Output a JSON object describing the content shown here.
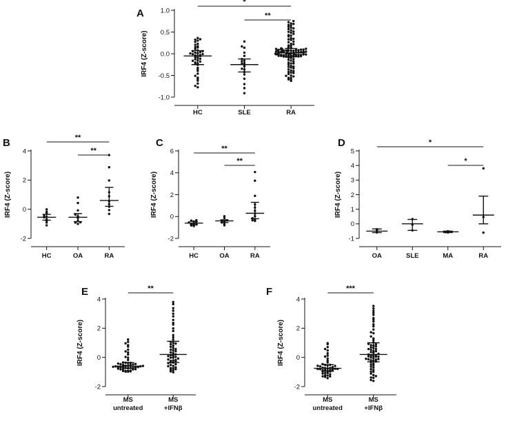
{
  "chart_data": [
    {
      "id": "A",
      "type": "scatter",
      "label": "A",
      "ylabel": "IRF4 (Z-score)",
      "ylim": [
        -1.0,
        1.0
      ],
      "yticks": [
        -1.0,
        -0.5,
        0.0,
        0.5,
        1.0
      ],
      "ytick_labels": [
        "-1.0",
        "-0.5",
        "0.0",
        "0.5",
        "1.0"
      ],
      "groups": [
        {
          "name": "HC",
          "n": 46,
          "min": -0.78,
          "max": 0.37,
          "median": -0.05,
          "q1": -0.25,
          "q3": 0.07
        },
        {
          "name": "SLE",
          "n": 20,
          "min": -0.9,
          "max": 0.28,
          "median": -0.25,
          "q1": -0.42,
          "q3": -0.12
        },
        {
          "name": "RA",
          "n": 120,
          "min": -0.62,
          "max": 0.75,
          "median": 0.02,
          "q1": -0.07,
          "q3": 0.12
        }
      ],
      "significance": [
        {
          "from": "HC",
          "to": "RA",
          "label": "*"
        },
        {
          "from": "SLE",
          "to": "RA",
          "label": "**"
        }
      ]
    },
    {
      "id": "B",
      "type": "scatter",
      "label": "B",
      "ylabel": "IRF4 (Z-score)",
      "ylim": [
        -2,
        4
      ],
      "yticks": [
        -2,
        0,
        2,
        4
      ],
      "ytick_labels": [
        "-2",
        "0",
        "2",
        "4"
      ],
      "groups": [
        {
          "name": "HC",
          "n": 10,
          "min": -1.1,
          "max": 0.0,
          "median": -0.55,
          "q1": -0.75,
          "q3": -0.35
        },
        {
          "name": "OA",
          "n": 10,
          "min": -1.0,
          "max": 0.8,
          "median": -0.55,
          "q1": -0.85,
          "q3": -0.3
        },
        {
          "name": "RA",
          "n": 10,
          "min": -0.3,
          "max": 3.7,
          "median": 0.6,
          "q1": 0.2,
          "q3": 1.5
        }
      ],
      "significance": [
        {
          "from": "HC",
          "to": "RA",
          "label": "**"
        },
        {
          "from": "OA",
          "to": "RA",
          "label": "**"
        }
      ]
    },
    {
      "id": "C",
      "type": "scatter",
      "label": "C",
      "ylabel": "IRF4 (Z-score)",
      "ylim": [
        -2,
        6
      ],
      "yticks": [
        -2,
        0,
        2,
        4,
        6
      ],
      "ytick_labels": [
        "-2",
        "0",
        "2",
        "4",
        "6"
      ],
      "groups": [
        {
          "name": "HC",
          "n": 10,
          "min": -0.9,
          "max": -0.3,
          "median": -0.6,
          "q1": -0.75,
          "q3": -0.45
        },
        {
          "name": "OA",
          "n": 8,
          "min": -0.8,
          "max": 0.0,
          "median": -0.4,
          "q1": -0.55,
          "q3": -0.3
        },
        {
          "name": "RA",
          "n": 12,
          "min": -0.4,
          "max": 4.1,
          "median": 0.3,
          "q1": -0.2,
          "q3": 1.3
        }
      ],
      "significance": [
        {
          "from": "HC",
          "to": "RA",
          "label": "**"
        },
        {
          "from": "OA",
          "to": "RA",
          "label": "**"
        }
      ]
    },
    {
      "id": "D",
      "type": "scatter",
      "label": "D",
      "ylabel": "IRF4 (Z-score)",
      "ylim": [
        -1,
        5
      ],
      "yticks": [
        -1,
        0,
        1,
        2,
        3,
        4,
        5
      ],
      "ytick_labels": [
        "-1",
        "0",
        "1",
        "2",
        "3",
        "4",
        "5"
      ],
      "groups": [
        {
          "name": "OA",
          "n": 3,
          "min": -0.6,
          "max": -0.35,
          "median": -0.5,
          "q1": -0.6,
          "q3": -0.35
        },
        {
          "name": "SLE",
          "n": 3,
          "min": -0.45,
          "max": 0.3,
          "median": 0.0,
          "q1": -0.45,
          "q3": 0.3
        },
        {
          "name": "MA",
          "n": 3,
          "min": -0.62,
          "max": -0.5,
          "median": -0.55,
          "q1": -0.6,
          "q3": -0.5
        },
        {
          "name": "RA",
          "n": 3,
          "min": -0.6,
          "max": 3.8,
          "median": 0.6,
          "q1": 0.0,
          "q3": 1.9
        }
      ],
      "significance": [
        {
          "from": "OA",
          "to": "RA",
          "label": "*"
        },
        {
          "from": "MA",
          "to": "RA",
          "label": "*"
        }
      ]
    },
    {
      "id": "E",
      "type": "scatter",
      "label": "E",
      "ylabel": "IRF4 (Z-score)",
      "ylim": [
        -2,
        4
      ],
      "yticks": [
        -2,
        0,
        2,
        4
      ],
      "ytick_labels": [
        "-2",
        "0",
        "2",
        "4"
      ],
      "groups": [
        {
          "name": "MS untreated",
          "lines": [
            "MS",
            "untreated"
          ],
          "n": 50,
          "min": -1.0,
          "max": 1.2,
          "median": -0.6,
          "q1": -0.75,
          "q3": -0.35
        },
        {
          "name": "MS +IFNβ",
          "lines": [
            "MS",
            "+IFNβ"
          ],
          "n": 55,
          "min": -1.0,
          "max": 3.8,
          "median": 0.2,
          "q1": -0.35,
          "q3": 1.1
        }
      ],
      "significance": [
        {
          "from": "MS untreated",
          "to": "MS +IFNβ",
          "label": "**"
        }
      ]
    },
    {
      "id": "F",
      "type": "scatter",
      "label": "F",
      "ylabel": "IRF4 (Z-score)",
      "ylim": [
        -2,
        4
      ],
      "yticks": [
        -2,
        0,
        2,
        4
      ],
      "ytick_labels": [
        "-2",
        "0",
        "2",
        "4"
      ],
      "groups": [
        {
          "name": "MS untreated",
          "lines": [
            "MS",
            "untreated"
          ],
          "n": 45,
          "min": -1.4,
          "max": 1.0,
          "median": -0.75,
          "q1": -0.95,
          "q3": -0.5
        },
        {
          "name": "MS +IFNβ",
          "lines": [
            "MS",
            "+IFNβ"
          ],
          "n": 65,
          "min": -1.6,
          "max": 3.5,
          "median": 0.2,
          "q1": -0.3,
          "q3": 1.0
        }
      ],
      "significance": [
        {
          "from": "MS untreated",
          "to": "MS +IFNβ",
          "label": "***"
        }
      ]
    }
  ]
}
